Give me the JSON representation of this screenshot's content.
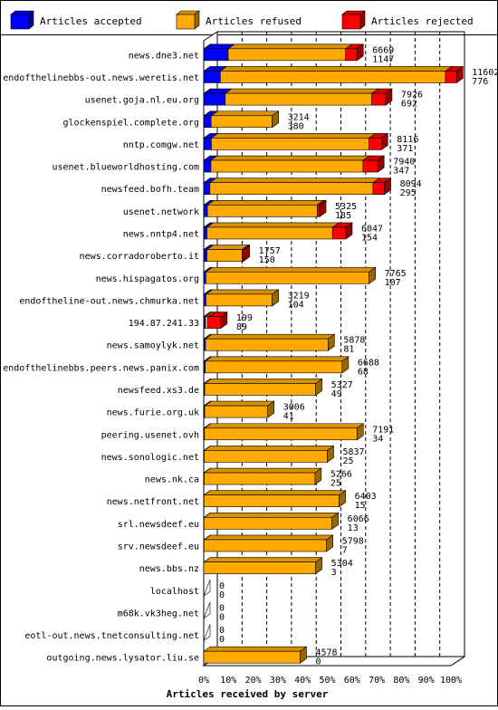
{
  "chart_data": {
    "type": "bar",
    "orientation": "horizontal",
    "stacked": true,
    "three_d": true,
    "xlabel": "Articles received by server",
    "ylabel": "",
    "xlim": [
      0,
      100
    ],
    "x_unit": "%",
    "x_ticks": [
      "0%",
      "10%",
      "20%",
      "30%",
      "40%",
      "50%",
      "60%",
      "70%",
      "80%",
      "90%",
      "100%"
    ],
    "grid": "vertical dashed",
    "legend_position": "top",
    "series": [
      {
        "name": "Articles accepted",
        "color": "#0000ff"
      },
      {
        "name": "Articles refused",
        "color": "#ffaa00"
      },
      {
        "name": "Articles rejected",
        "color": "#ff0000"
      }
    ],
    "categories": [
      "news.dne3.net",
      "endofthelinebbs-out.news.weretis.net",
      "usenet.goja.nl.eu.org",
      "glockenspiel.complete.org",
      "nntp.comgw.net",
      "usenet.blueworldhosting.com",
      "newsfeed.bofh.team",
      "usenet.network",
      "news.nntp4.net",
      "news.corradoroberto.it",
      "news.hispagatos.org",
      "endoftheline-out.news.chmurka.net",
      "194.87.241.33",
      "news.samoylyk.net",
      "endofthelinebbs.peers.news.panix.com",
      "newsfeed.xs3.de",
      "news.furie.org.uk",
      "peering.usenet.ovh",
      "news.sonologic.net",
      "news.nk.ca",
      "news.netfront.net",
      "srl.newsdeef.eu",
      "srv.newsdeef.eu",
      "news.bbs.nz",
      "localhost",
      "m68k.vk3heg.net",
      "eotl-out.news.tnetconsulting.net",
      "outgoing.news.lysator.liu.se"
    ],
    "label_top": [
      6669,
      11602,
      7926,
      3214,
      8116,
      7940,
      8094,
      5325,
      6047,
      1757,
      7765,
      3219,
      199,
      5878,
      6688,
      5327,
      3006,
      7191,
      5837,
      5266,
      6403,
      6066,
      5798,
      5304,
      0,
      0,
      0,
      4578
    ],
    "label_bottom": [
      1147,
      776,
      692,
      380,
      371,
      347,
      295,
      185,
      154,
      150,
      107,
      104,
      89,
      81,
      68,
      49,
      41,
      34,
      25,
      25,
      15,
      13,
      7,
      3,
      0,
      0,
      0,
      0
    ],
    "accepted_pct": [
      9.9,
      6.7,
      8.7,
      3.0,
      3.1,
      2.9,
      2.5,
      1.5,
      1.3,
      1.3,
      0.9,
      0.9,
      0.7,
      0.7,
      0.6,
      0.4,
      0.4,
      0.3,
      0.2,
      0.2,
      0.1,
      0.1,
      0.1,
      0.0,
      0,
      0,
      0,
      0
    ],
    "refused_pct": [
      47.5,
      91.1,
      59.3,
      24.7,
      63.8,
      61.5,
      66.0,
      44.4,
      50.8,
      14.2,
      66.0,
      26.8,
      1.0,
      49.6,
      55.4,
      44.9,
      25.5,
      61.7,
      49.8,
      44.8,
      54.7,
      51.8,
      49.6,
      45.3,
      0,
      0,
      0,
      39.0
    ],
    "rejected_pct": [
      4.6,
      4.5,
      5.6,
      0,
      5.0,
      6.0,
      4.6,
      1.0,
      5.4,
      0.5,
      0,
      0,
      5.2,
      0,
      0,
      0,
      0,
      0,
      0,
      0,
      0,
      0,
      0,
      0,
      0,
      0,
      0,
      0
    ]
  }
}
